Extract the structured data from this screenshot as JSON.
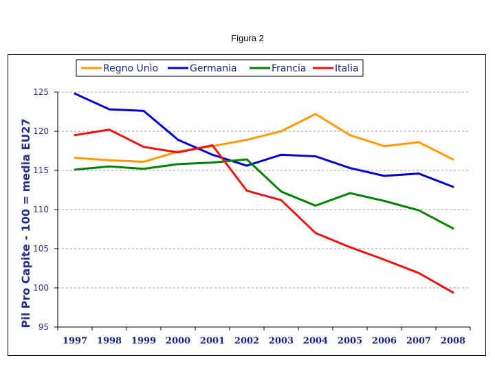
{
  "figure_title": "Figura 2",
  "chart_data": {
    "type": "line",
    "title": "",
    "xlabel": "",
    "ylabel": "Pil Pro Capite - 100 = media EU27",
    "ylim": [
      95,
      125
    ],
    "yticks": [
      95,
      100,
      105,
      110,
      115,
      120,
      125
    ],
    "grid": true,
    "legend_position": "top-left",
    "categories": [
      "1997",
      "1998",
      "1999",
      "2000",
      "2001",
      "2002",
      "2003",
      "2004",
      "2005",
      "2006",
      "2007",
      "2008"
    ],
    "series": [
      {
        "name": "Regno Unìo",
        "color": "#ff9900",
        "values": [
          116.6,
          116.3,
          116.1,
          117.4,
          118.1,
          118.9,
          120.0,
          122.2,
          119.5,
          118.1,
          118.6,
          116.4
        ]
      },
      {
        "name": "Germania",
        "color": "#0000cc",
        "values": [
          124.8,
          122.8,
          122.6,
          118.9,
          117.0,
          115.6,
          117.0,
          116.8,
          115.3,
          114.3,
          114.6,
          112.9
        ]
      },
      {
        "name": "Francia",
        "color": "#008000",
        "values": [
          115.1,
          115.5,
          115.2,
          115.8,
          116.0,
          116.4,
          112.3,
          110.5,
          112.1,
          111.1,
          109.9,
          107.6
        ]
      },
      {
        "name": "Italia",
        "color": "#ee1111",
        "values": [
          119.5,
          120.2,
          118.0,
          117.3,
          118.2,
          112.4,
          111.2,
          107.0,
          105.2,
          103.6,
          101.9,
          99.4
        ]
      }
    ]
  }
}
